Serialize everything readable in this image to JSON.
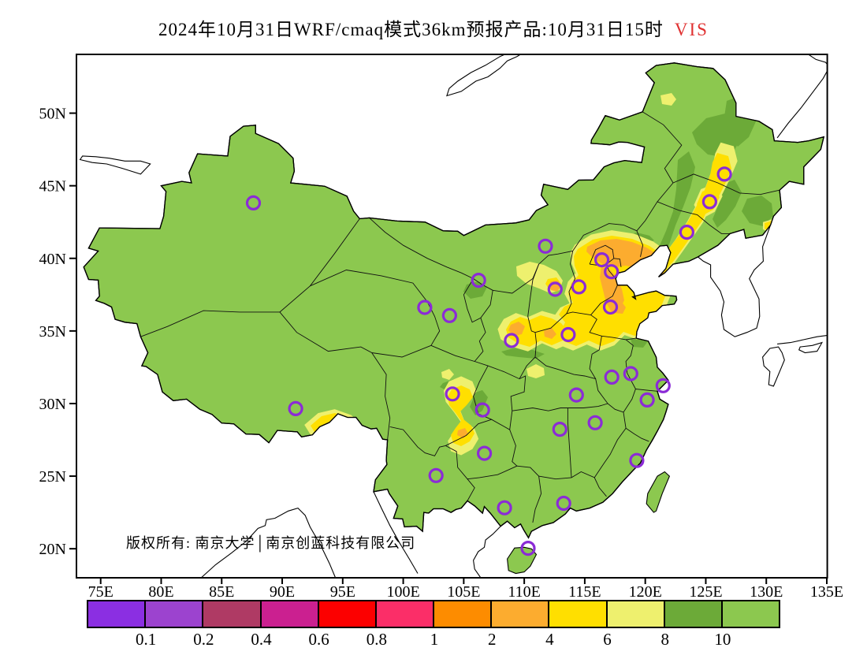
{
  "title": {
    "text": "2024年10月31日WRF/cmaq模式36km预报产品:10月31日15时",
    "highlight": "VIS",
    "highlight_color": "#e03131"
  },
  "map": {
    "copyright": "版权所有: 南京大学│南京创蓝科技有限公司",
    "axes": {
      "x_ticks": [
        "75E",
        "80E",
        "85E",
        "90E",
        "95E",
        "100E",
        "105E",
        "110E",
        "115E",
        "120E",
        "125E",
        "130E",
        "135E"
      ],
      "y_ticks": [
        "50N",
        "45N",
        "40N",
        "35N",
        "30N",
        "25N",
        "20N"
      ],
      "lon_range": [
        73,
        135
      ],
      "lat_range": [
        18,
        54
      ]
    },
    "colors": {
      "land": "#8CC84F",
      "vis_8_10": "#6CAA38",
      "vis_6_8": "#EEF06E",
      "vis_4_6": "#FFDF00",
      "vis_2_4": "#FCAC2F",
      "marker": "#8B2BD6",
      "outline": "#000000"
    },
    "markers": [
      {
        "name": "urumqi",
        "lon": 87.62,
        "lat": 43.82
      },
      {
        "name": "harbin",
        "lon": 126.54,
        "lat": 45.8
      },
      {
        "name": "changchun",
        "lon": 125.32,
        "lat": 43.9
      },
      {
        "name": "shenyang",
        "lon": 123.43,
        "lat": 41.8
      },
      {
        "name": "hohhot",
        "lon": 111.75,
        "lat": 40.84
      },
      {
        "name": "beijing",
        "lon": 116.41,
        "lat": 39.9
      },
      {
        "name": "tianjin",
        "lon": 117.2,
        "lat": 39.08
      },
      {
        "name": "shijiazhuang",
        "lon": 114.51,
        "lat": 38.04
      },
      {
        "name": "taiyuan",
        "lon": 112.55,
        "lat": 37.87
      },
      {
        "name": "yinchuan",
        "lon": 106.23,
        "lat": 38.49
      },
      {
        "name": "jinan",
        "lon": 117.12,
        "lat": 36.65
      },
      {
        "name": "xining",
        "lon": 101.78,
        "lat": 36.62
      },
      {
        "name": "lanzhou",
        "lon": 103.83,
        "lat": 36.06
      },
      {
        "name": "zhengzhou",
        "lon": 113.63,
        "lat": 34.75
      },
      {
        "name": "xian",
        "lon": 108.94,
        "lat": 34.34
      },
      {
        "name": "nanjing",
        "lon": 118.8,
        "lat": 32.06
      },
      {
        "name": "hefei",
        "lon": 117.23,
        "lat": 31.82
      },
      {
        "name": "shanghai",
        "lon": 121.47,
        "lat": 31.23
      },
      {
        "name": "wuhan",
        "lon": 114.31,
        "lat": 30.59
      },
      {
        "name": "chengdu",
        "lon": 104.07,
        "lat": 30.66
      },
      {
        "name": "hangzhou",
        "lon": 120.16,
        "lat": 30.25
      },
      {
        "name": "lhasa",
        "lon": 91.11,
        "lat": 29.65
      },
      {
        "name": "chongqing",
        "lon": 106.55,
        "lat": 29.56
      },
      {
        "name": "nanchang",
        "lon": 115.86,
        "lat": 28.68
      },
      {
        "name": "changsha",
        "lon": 112.94,
        "lat": 28.23
      },
      {
        "name": "guiyang",
        "lon": 106.71,
        "lat": 26.57
      },
      {
        "name": "fuzhou",
        "lon": 119.3,
        "lat": 26.08
      },
      {
        "name": "kunming",
        "lon": 102.71,
        "lat": 25.04
      },
      {
        "name": "guangzhou",
        "lon": 113.26,
        "lat": 23.13
      },
      {
        "name": "nanning",
        "lon": 108.37,
        "lat": 22.82
      },
      {
        "name": "haikou",
        "lon": 110.32,
        "lat": 20.03
      }
    ]
  },
  "legend": {
    "labels": [
      "0.1",
      "0.2",
      "0.4",
      "0.6",
      "0.8",
      "1",
      "2",
      "4",
      "6",
      "8",
      "10"
    ],
    "colors": [
      "#8B2FE2",
      "#9C43CF",
      "#AF3A64",
      "#CB2090",
      "#FC0000",
      "#FB2E68",
      "#FD8C00",
      "#FCAC2F",
      "#FFDF00",
      "#EEF06E",
      "#6CAA38",
      "#8CC84F"
    ]
  }
}
